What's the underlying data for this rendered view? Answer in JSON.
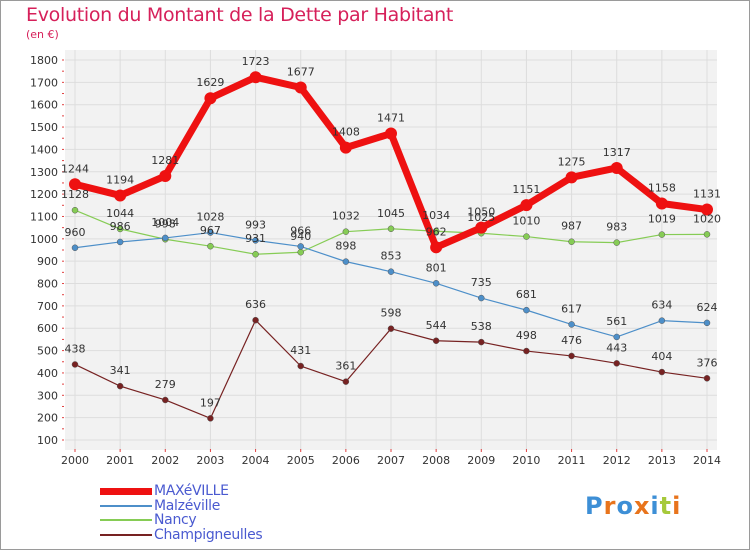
{
  "title": "Evolution du Montant de la Dette par Habitant",
  "subtitle": "(en €)",
  "logo": {
    "text": "Proxiti",
    "colors": [
      "#3d8fd6",
      "#e8741c",
      "#3d8fd6",
      "#e8741c",
      "#3d8fd6",
      "#a6c93a",
      "#e8741c"
    ]
  },
  "chart_data": {
    "type": "line",
    "title": "Evolution du Montant de la Dette par Habitant",
    "subtitle": "(en €)",
    "x": [
      "2000",
      "2001",
      "2002",
      "2003",
      "2004",
      "2005",
      "2006",
      "2007",
      "2008",
      "2009",
      "2010",
      "2011",
      "2012",
      "2013",
      "2014"
    ],
    "ylim": [
      100,
      1800
    ],
    "yticks": [
      100,
      200,
      300,
      400,
      500,
      600,
      700,
      800,
      900,
      1000,
      1100,
      1200,
      1300,
      1400,
      1500,
      1600,
      1700,
      1800
    ],
    "grid": true,
    "series": [
      {
        "name": "MAXéVILLE",
        "color": "#ee1111",
        "values": [
          1244,
          1194,
          1281,
          1629,
          1723,
          1677,
          1408,
          1471,
          962,
          1050,
          1151,
          1275,
          1317,
          1158,
          1131
        ],
        "labels": [
          "1244",
          "1194",
          "1281",
          "1629",
          "1723",
          "1677",
          "1408",
          "1471",
          "962",
          "1050",
          "1151",
          "1275",
          "1317",
          "1158",
          "1131"
        ]
      },
      {
        "name": "Malzéville",
        "color": "#4d8fc9",
        "values": [
          960,
          986,
          1004,
          1028,
          993,
          966,
          898,
          853,
          801,
          735,
          681,
          617,
          561,
          634,
          624
        ],
        "labels": [
          "960",
          "986",
          "1004",
          "1028",
          "993",
          "966",
          "898",
          "853",
          "801",
          "735",
          "681",
          "617",
          "561",
          "634",
          "624"
        ]
      },
      {
        "name": "Nancy",
        "color": "#86cc55",
        "values": [
          1128,
          1044,
          998,
          967,
          931,
          940,
          1032,
          1045,
          1034,
          1025,
          1010,
          987,
          983,
          1019,
          1020
        ],
        "labels": [
          "1128",
          "1044",
          "998",
          "967",
          "931",
          "940",
          "1032",
          "1045",
          "1034",
          "1025",
          "1010",
          "987",
          "983",
          "1019",
          "1020"
        ]
      },
      {
        "name": "Champigneulles",
        "color": "#772222",
        "values": [
          438,
          341,
          279,
          197,
          636,
          431,
          361,
          598,
          544,
          538,
          498,
          476,
          443,
          404,
          376
        ],
        "labels": [
          "438",
          "341",
          "279",
          "197",
          "636",
          "431",
          "361",
          "598",
          "544",
          "538",
          "498",
          "476",
          "443",
          "404",
          "376"
        ]
      }
    ]
  }
}
